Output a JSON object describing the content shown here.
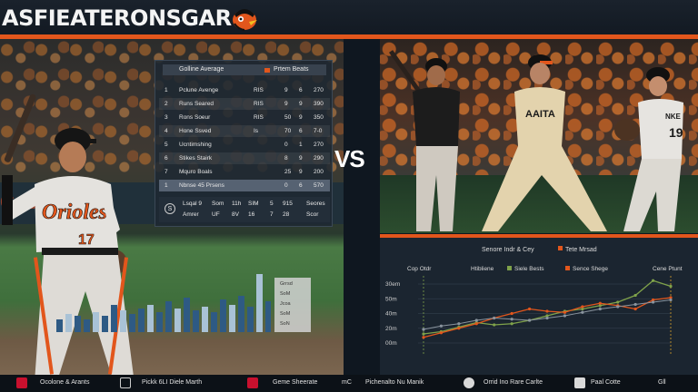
{
  "header": {
    "title": "ASFIEATERONSGAR"
  },
  "colors": {
    "accent": "#e2561c",
    "panel": "#1b2530",
    "line_orange": "#e2561c",
    "line_green": "#7fa24a",
    "line_gray": "#8a949e"
  },
  "left_photo": {
    "wall_text": "Costo",
    "jersey_text": "Orioles",
    "jersey_number": "17"
  },
  "stats_table": {
    "header_left": "Golline Average",
    "header_right": "Prtem Beats",
    "rows": [
      {
        "num": "1",
        "label": "Pclune Avenge",
        "code": "RIS",
        "a": "9",
        "b": "6",
        "c": "270"
      },
      {
        "num": "2",
        "label": "Runs Seared",
        "code": "RIS",
        "a": "9",
        "b": "9",
        "c": "390"
      },
      {
        "num": "3",
        "label": "Rons Soeur",
        "code": "RIS",
        "a": "50",
        "b": "9",
        "c": "350"
      },
      {
        "num": "4",
        "label": "Hone Ssved",
        "code": "Is",
        "a": "70",
        "b": "6",
        "c": "7-0"
      },
      {
        "num": "5",
        "label": "Ucntimshing",
        "code": "",
        "a": "0",
        "b": "1",
        "c": "270"
      },
      {
        "num": "6",
        "label": "Stikes Stairk",
        "code": "",
        "a": "8",
        "b": "9",
        "c": "290"
      },
      {
        "num": "7",
        "label": "Mquro Boals",
        "code": "",
        "a": "25",
        "b": "9",
        "c": "200"
      },
      {
        "num": "1",
        "label": "Nbnse 45 Prsens",
        "code": "",
        "a": "0",
        "b": "6",
        "c": "570"
      }
    ],
    "footer": {
      "icon_label": "S",
      "line1": [
        "Lsqal 9",
        "Som",
        "11h",
        "SIM",
        "5",
        "915",
        "Seores"
      ],
      "line2": [
        "Amrer",
        "UF",
        "8V",
        "16",
        "7",
        "28",
        "Scor"
      ]
    }
  },
  "mini_chart_legend": [
    "Grrsd",
    "SoM",
    "Jcoa",
    "SoM",
    "SoN"
  ],
  "vs_label": "VS",
  "right_photo": {
    "jersey_center": "AAITA",
    "jersey_right": "NKE",
    "number_right": "19"
  },
  "chart_data": {
    "type": "line",
    "title": "Senore Indr & Cey",
    "legend_header": "Tete Mrsad",
    "col_labels": [
      "Cop Otdr",
      "Htibliene",
      "Siele Bests",
      "Sence Shege",
      "Cene Ptunt"
    ],
    "y_ticks": [
      "30em",
      "50m",
      "40m",
      "20m",
      "00m"
    ],
    "x": [
      0,
      1,
      2,
      3,
      4,
      5,
      6,
      7,
      8,
      9,
      10,
      11,
      12,
      13,
      14
    ],
    "series": [
      {
        "name": "Siele Bests",
        "color": "#7fa24a",
        "values": [
          8,
          10,
          14,
          18,
          16,
          17,
          20,
          24,
          28,
          30,
          33,
          36,
          42,
          55,
          50
        ]
      },
      {
        "name": "Sence Shege",
        "color": "#e2561c",
        "values": [
          5,
          9,
          13,
          17,
          22,
          26,
          30,
          28,
          27,
          32,
          35,
          33,
          30,
          38,
          40
        ]
      },
      {
        "name": "",
        "color": "#8a949e",
        "values": [
          12,
          15,
          17,
          20,
          22,
          21,
          20,
          22,
          24,
          27,
          30,
          32,
          34,
          36,
          38
        ]
      }
    ],
    "ylim": [
      0,
      60
    ]
  },
  "footer": {
    "items": [
      "Ocolone & Arants",
      "Pickk 6LI Diele Marth",
      "Geme Sheerate",
      "Pichenalto Nu Manik",
      "Orrid Ino Rare Carlte",
      "Paal Cotte",
      "Gll"
    ],
    "mc_label": "mC"
  }
}
